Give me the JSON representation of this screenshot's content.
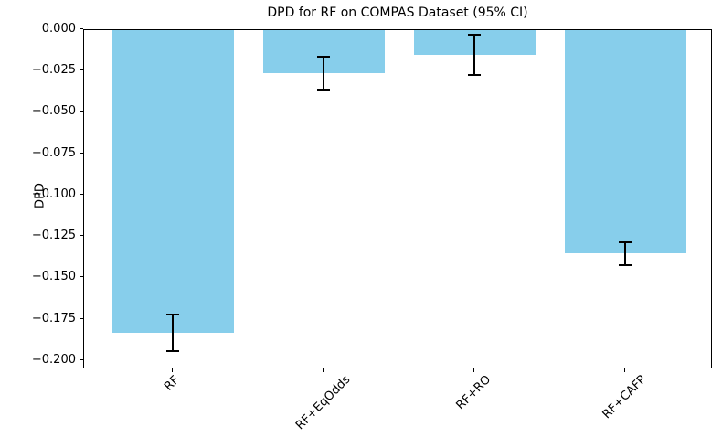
{
  "chart_data": {
    "type": "bar",
    "title": "DPD for RF on COMPAS Dataset (95% CI)",
    "xlabel": "",
    "ylabel": "DPD",
    "categories": [
      "RF",
      "RF+EqOdds",
      "RF+RO",
      "RF+CAFP"
    ],
    "values": [
      -0.183,
      -0.026,
      -0.015,
      -0.135
    ],
    "error_95ci": [
      0.011,
      0.01,
      0.012,
      0.007
    ],
    "ylim": [
      -0.205,
      0.0
    ],
    "yticks": [
      0.0,
      -0.025,
      -0.05,
      -0.075,
      -0.1,
      -0.125,
      -0.15,
      -0.175,
      -0.2
    ],
    "ytick_labels": [
      "0.000",
      "−0.025",
      "−0.050",
      "−0.075",
      "−0.100",
      "−0.125",
      "−0.150",
      "−0.175",
      "−0.200"
    ],
    "x_tick_rotation_deg": 45,
    "bar_color": "#87CEEB",
    "error_color": "#000000",
    "background_color": "#FFFFFF",
    "grid": false,
    "legend": null
  }
}
